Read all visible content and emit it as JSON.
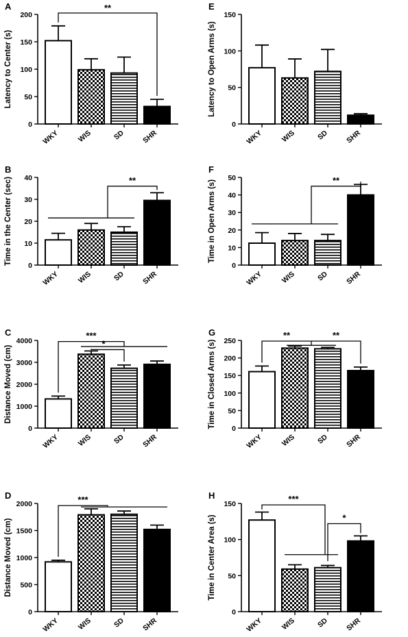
{
  "chart_data": [
    {
      "panel": "A",
      "type": "bar",
      "ylabel": "Latency to Center (s)",
      "categories": [
        "WKY",
        "WIS",
        "SD",
        "SHR"
      ],
      "values": [
        152,
        99,
        93,
        32
      ],
      "errors": [
        27,
        20,
        29,
        13
      ],
      "ylim": [
        0,
        200
      ],
      "yticks": [
        0,
        50,
        100,
        150,
        200
      ],
      "annotations": [
        {
          "type": "bracket",
          "label": "**",
          "from": 0,
          "to": 3
        }
      ]
    },
    {
      "panel": "E",
      "type": "bar",
      "ylabel": "Latency to Open Arms (s)",
      "categories": [
        "WKY",
        "WIS",
        "SD",
        "SHR"
      ],
      "values": [
        77,
        63,
        72,
        12
      ],
      "errors": [
        31,
        26,
        30,
        2
      ],
      "ylim": [
        0,
        150
      ],
      "yticks": [
        0,
        50,
        100,
        150
      ],
      "annotations": []
    },
    {
      "panel": "B",
      "type": "bar",
      "ylabel": "Time in the Center (sec)",
      "categories": [
        "WKY",
        "WIS",
        "SD",
        "SHR"
      ],
      "values": [
        11.5,
        16,
        15,
        29.5
      ],
      "errors": [
        3,
        3,
        2.5,
        3.5
      ],
      "ylim": [
        0,
        40
      ],
      "yticks": [
        0,
        10,
        20,
        30,
        40
      ],
      "annotations": [
        {
          "type": "group-bracket",
          "label": "**",
          "group_from": 0,
          "group_to": 2,
          "to": 3
        }
      ]
    },
    {
      "panel": "F",
      "type": "bar",
      "ylabel": "Time in Open Arms (s)",
      "categories": [
        "WKY",
        "WIS",
        "SD",
        "SHR"
      ],
      "values": [
        12.5,
        14,
        14,
        40
      ],
      "errors": [
        6,
        4,
        3.5,
        6
      ],
      "ylim": [
        0,
        50
      ],
      "yticks": [
        0,
        10,
        20,
        30,
        40,
        50
      ],
      "annotations": [
        {
          "type": "group-bracket",
          "label": "**",
          "group_from": 0,
          "group_to": 2,
          "to": 3
        }
      ]
    },
    {
      "panel": "C",
      "type": "bar",
      "ylabel": "Distance Moved (cm)",
      "categories": [
        "WKY",
        "WIS",
        "SD",
        "SHR"
      ],
      "values": [
        1330,
        3370,
        2730,
        2910
      ],
      "errors": [
        130,
        150,
        150,
        150
      ],
      "ylim": [
        0,
        4000
      ],
      "yticks": [
        0,
        1000,
        2000,
        3000,
        4000
      ],
      "annotations": [
        {
          "type": "bracket",
          "label": "***",
          "from": 0,
          "to": 2
        },
        {
          "type": "bracket-line",
          "from": 1,
          "to": 3
        },
        {
          "type": "bracket",
          "label": "*",
          "from": 1,
          "to": 2
        }
      ]
    },
    {
      "panel": "G",
      "type": "bar",
      "ylabel": "Time in Closed Arms (s)",
      "categories": [
        "WKY",
        "WIS",
        "SD",
        "SHR"
      ],
      "values": [
        161,
        228,
        226,
        164
      ],
      "errors": [
        16,
        6,
        4,
        10
      ],
      "ylim": [
        0,
        250
      ],
      "yticks": [
        0,
        50,
        100,
        150,
        200,
        250
      ],
      "annotations": [
        {
          "type": "bracket",
          "label": "**",
          "from": 0,
          "to": 1.5
        },
        {
          "type": "bracket",
          "label": "**",
          "from": 1.5,
          "to": 3
        }
      ]
    },
    {
      "panel": "D",
      "type": "bar",
      "ylabel": "Distance Moved (cm)",
      "categories": [
        "WKY",
        "WIS",
        "SD",
        "SHR"
      ],
      "values": [
        920,
        1790,
        1800,
        1520
      ],
      "errors": [
        30,
        110,
        60,
        80
      ],
      "ylim": [
        0,
        2000
      ],
      "yticks": [
        0,
        500,
        1000,
        1500,
        2000
      ],
      "annotations": [
        {
          "type": "group-bracket-left",
          "label": "***",
          "from": 0,
          "group_from": 1,
          "group_to": 3
        }
      ]
    },
    {
      "panel": "H",
      "type": "bar",
      "ylabel": "Time in Center Area (s)",
      "categories": [
        "WKY",
        "WIS",
        "SD",
        "SHR"
      ],
      "values": [
        127,
        59,
        61,
        98
      ],
      "errors": [
        11,
        6,
        3,
        7
      ],
      "ylim": [
        0,
        150
      ],
      "yticks": [
        0,
        50,
        100,
        150
      ],
      "annotations": [
        {
          "type": "bracket-down",
          "label": "***",
          "from": 0,
          "down_to": 1.5
        },
        {
          "type": "group-line",
          "group_from": 1,
          "group_to": 2
        },
        {
          "type": "bracket-down",
          "label": "*",
          "from": 1.5,
          "to": 3
        }
      ]
    }
  ]
}
